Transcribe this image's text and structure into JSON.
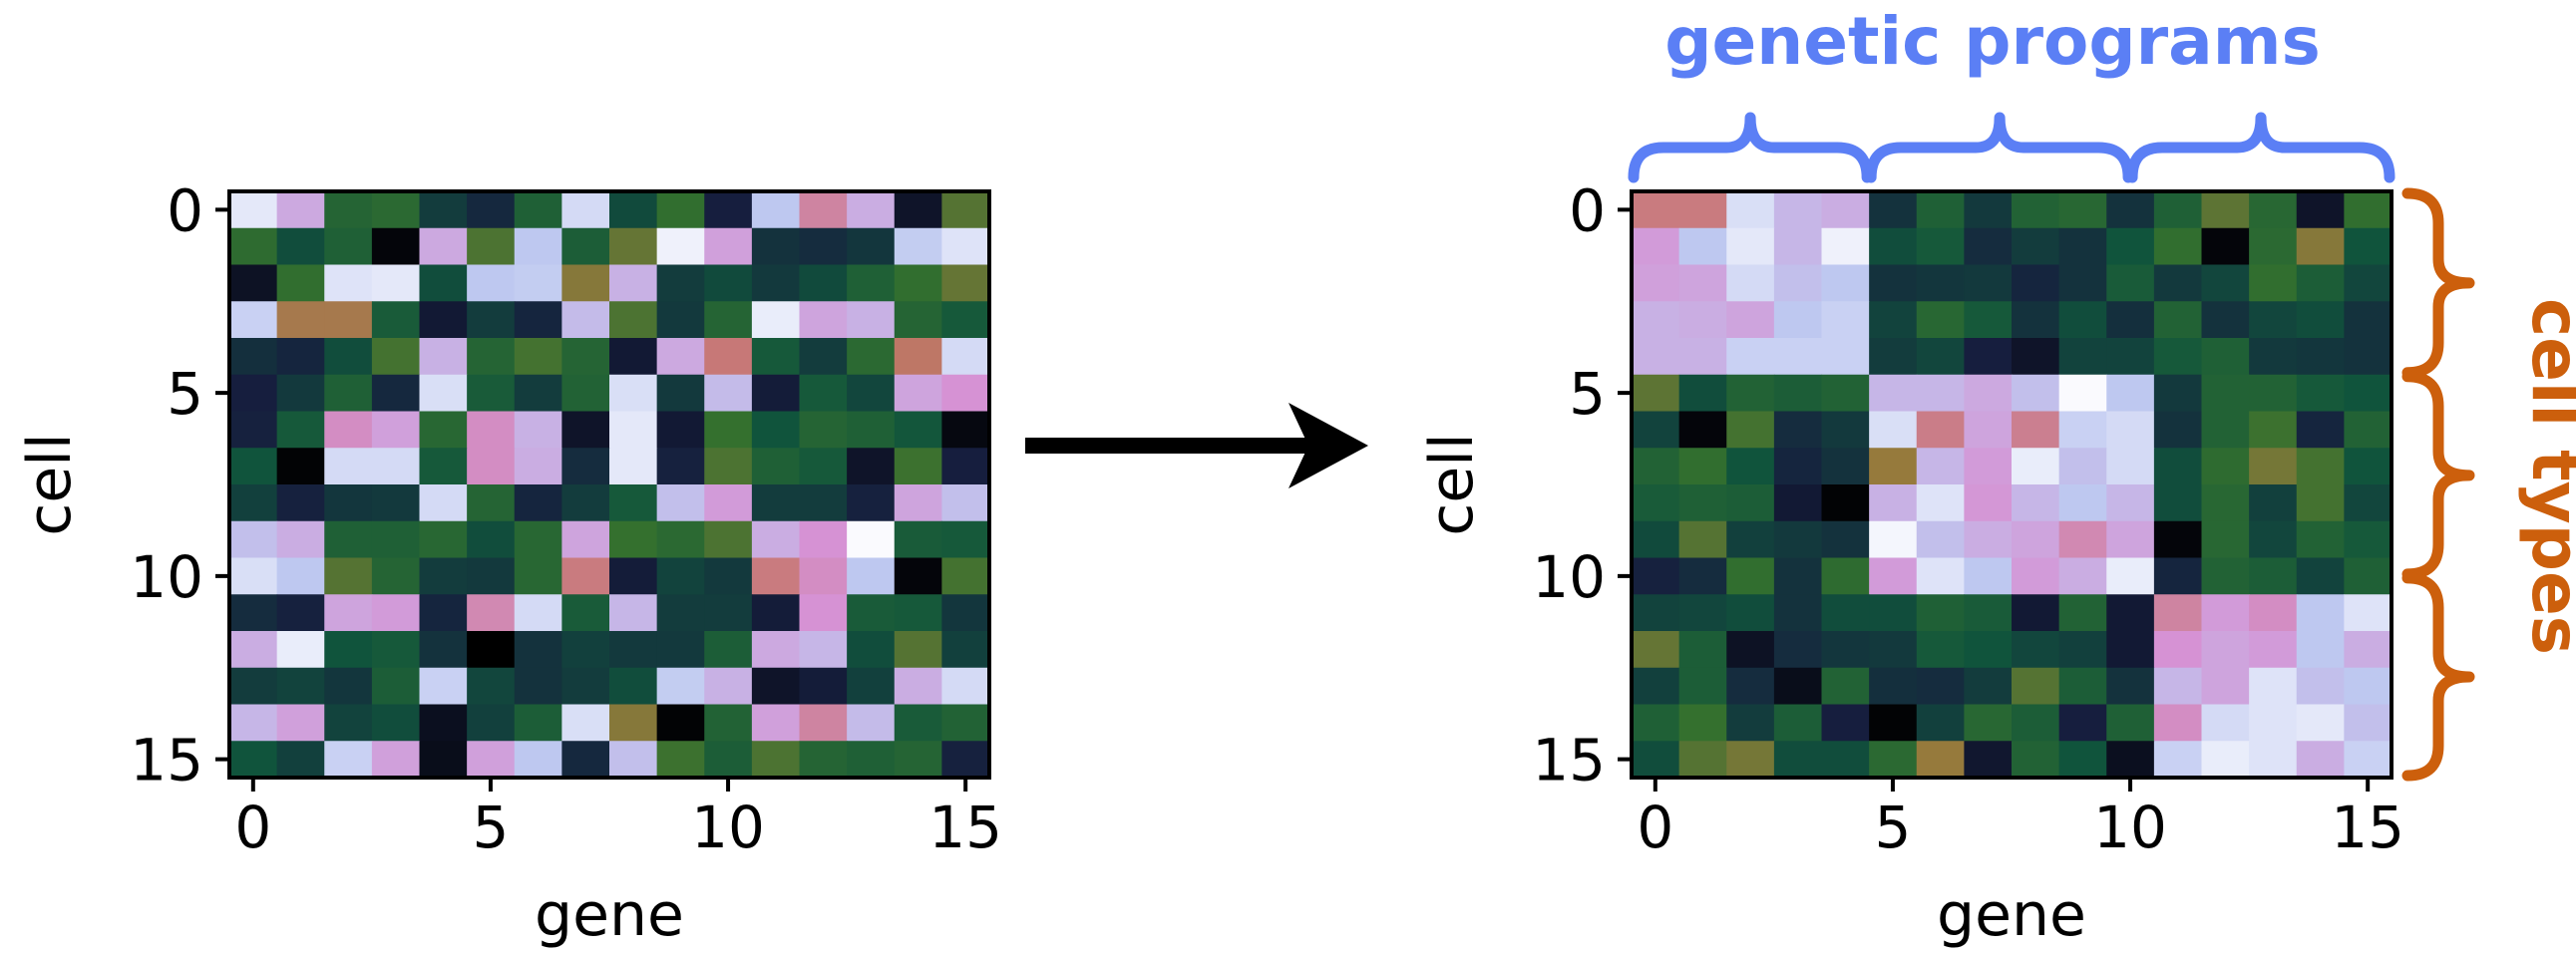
{
  "colors": {
    "genetic_programs": "#5b7ff5",
    "cell_types": "#cc5f0c",
    "arrow": "#000000"
  },
  "annotations": {
    "top_label": "genetic programs",
    "side_label": "cell types"
  },
  "chart_data": [
    {
      "type": "heatmap",
      "xlabel": "gene",
      "ylabel": "cell",
      "xlim": [
        -0.5,
        15.5
      ],
      "ylim": [
        15.5,
        -0.5
      ],
      "xticks": [
        0,
        5,
        10,
        15
      ],
      "yticks": [
        0,
        5,
        10,
        15
      ],
      "xtick_labels": [
        "0",
        "5",
        "10",
        "15"
      ],
      "ytick_labels": [
        "0",
        "5",
        "10",
        "15"
      ],
      "colormap": "cubehelix-like",
      "values": [
        [
          0.95,
          0.81,
          0.35,
          0.37,
          0.21,
          0.15,
          0.33,
          0.92,
          0.25,
          0.39,
          0.12,
          0.88,
          0.7,
          0.82,
          0.08,
          0.44
        ],
        [
          0.38,
          0.26,
          0.33,
          0.02,
          0.81,
          0.43,
          0.88,
          0.32,
          0.46,
          0.97,
          0.79,
          0.18,
          0.16,
          0.19,
          0.89,
          0.94
        ],
        [
          0.07,
          0.39,
          0.94,
          0.95,
          0.26,
          0.88,
          0.89,
          0.5,
          0.83,
          0.21,
          0.25,
          0.2,
          0.25,
          0.33,
          0.39,
          0.46
        ],
        [
          0.9,
          0.56,
          0.56,
          0.31,
          0.1,
          0.21,
          0.14,
          0.85,
          0.43,
          0.2,
          0.35,
          0.96,
          0.8,
          0.83,
          0.35,
          0.3
        ],
        [
          0.17,
          0.14,
          0.26,
          0.42,
          0.83,
          0.35,
          0.42,
          0.35,
          0.1,
          0.81,
          0.65,
          0.3,
          0.21,
          0.37,
          0.62,
          0.92
        ],
        [
          0.12,
          0.2,
          0.33,
          0.15,
          0.93,
          0.31,
          0.21,
          0.34,
          0.93,
          0.2,
          0.85,
          0.11,
          0.3,
          0.24,
          0.8,
          0.76
        ],
        [
          0.13,
          0.3,
          0.74,
          0.79,
          0.36,
          0.74,
          0.83,
          0.08,
          0.95,
          0.1,
          0.4,
          0.28,
          0.35,
          0.33,
          0.29,
          0.03
        ],
        [
          0.28,
          0.01,
          0.92,
          0.92,
          0.3,
          0.74,
          0.82,
          0.16,
          0.95,
          0.13,
          0.43,
          0.33,
          0.3,
          0.08,
          0.41,
          0.12
        ],
        [
          0.22,
          0.13,
          0.19,
          0.2,
          0.92,
          0.35,
          0.14,
          0.21,
          0.3,
          0.86,
          0.78,
          0.21,
          0.21,
          0.13,
          0.8,
          0.86
        ],
        [
          0.86,
          0.82,
          0.33,
          0.33,
          0.36,
          0.26,
          0.36,
          0.8,
          0.4,
          0.37,
          0.43,
          0.82,
          0.76,
          0.99,
          0.31,
          0.3
        ],
        [
          0.93,
          0.88,
          0.44,
          0.35,
          0.21,
          0.2,
          0.36,
          0.66,
          0.11,
          0.23,
          0.2,
          0.66,
          0.74,
          0.88,
          0.02,
          0.42
        ],
        [
          0.16,
          0.13,
          0.8,
          0.78,
          0.14,
          0.72,
          0.92,
          0.31,
          0.84,
          0.21,
          0.21,
          0.11,
          0.76,
          0.31,
          0.3,
          0.19
        ],
        [
          0.82,
          0.96,
          0.28,
          0.3,
          0.18,
          0.0,
          0.18,
          0.22,
          0.2,
          0.2,
          0.32,
          0.81,
          0.84,
          0.26,
          0.44,
          0.22
        ],
        [
          0.21,
          0.23,
          0.19,
          0.32,
          0.9,
          0.24,
          0.18,
          0.21,
          0.26,
          0.89,
          0.83,
          0.08,
          0.11,
          0.22,
          0.82,
          0.92
        ],
        [
          0.84,
          0.79,
          0.23,
          0.26,
          0.06,
          0.22,
          0.32,
          0.93,
          0.5,
          0.01,
          0.34,
          0.79,
          0.7,
          0.85,
          0.31,
          0.34
        ],
        [
          0.28,
          0.22,
          0.9,
          0.79,
          0.05,
          0.79,
          0.88,
          0.15,
          0.86,
          0.41,
          0.32,
          0.43,
          0.35,
          0.33,
          0.35,
          0.13
        ]
      ]
    },
    {
      "type": "heatmap",
      "xlabel": "gene",
      "ylabel": "cell",
      "xlim": [
        -0.5,
        15.5
      ],
      "ylim": [
        15.5,
        -0.5
      ],
      "xticks": [
        0,
        5,
        10,
        15
      ],
      "yticks": [
        0,
        5,
        10,
        15
      ],
      "xtick_labels": [
        "0",
        "5",
        "10",
        "15"
      ],
      "ytick_labels": [
        "0",
        "5",
        "10",
        "15"
      ],
      "colormap": "cubehelix-like",
      "values": [
        [
          0.66,
          0.66,
          0.93,
          0.84,
          0.82,
          0.18,
          0.33,
          0.2,
          0.34,
          0.36,
          0.18,
          0.33,
          0.45,
          0.36,
          0.08,
          0.39
        ],
        [
          0.78,
          0.88,
          0.95,
          0.84,
          0.97,
          0.26,
          0.3,
          0.16,
          0.21,
          0.18,
          0.28,
          0.39,
          0.02,
          0.37,
          0.5,
          0.28
        ],
        [
          0.79,
          0.8,
          0.92,
          0.86,
          0.88,
          0.18,
          0.19,
          0.2,
          0.14,
          0.18,
          0.31,
          0.2,
          0.24,
          0.39,
          0.32,
          0.24
        ],
        [
          0.83,
          0.82,
          0.8,
          0.88,
          0.9,
          0.23,
          0.36,
          0.3,
          0.18,
          0.26,
          0.17,
          0.34,
          0.18,
          0.24,
          0.26,
          0.18
        ],
        [
          0.83,
          0.83,
          0.9,
          0.9,
          0.9,
          0.21,
          0.24,
          0.12,
          0.08,
          0.23,
          0.23,
          0.3,
          0.33,
          0.2,
          0.19,
          0.18
        ],
        [
          0.45,
          0.26,
          0.34,
          0.32,
          0.34,
          0.84,
          0.84,
          0.81,
          0.86,
          0.99,
          0.88,
          0.2,
          0.34,
          0.34,
          0.3,
          0.28
        ],
        [
          0.23,
          0.02,
          0.42,
          0.16,
          0.2,
          0.93,
          0.67,
          0.8,
          0.68,
          0.9,
          0.92,
          0.18,
          0.34,
          0.41,
          0.14,
          0.34
        ],
        [
          0.34,
          0.39,
          0.28,
          0.14,
          0.18,
          0.52,
          0.84,
          0.78,
          0.96,
          0.86,
          0.92,
          0.26,
          0.38,
          0.48,
          0.42,
          0.28
        ],
        [
          0.31,
          0.33,
          0.32,
          0.1,
          0.01,
          0.83,
          0.94,
          0.77,
          0.84,
          0.88,
          0.84,
          0.26,
          0.36,
          0.22,
          0.42,
          0.24
        ],
        [
          0.25,
          0.44,
          0.22,
          0.2,
          0.18,
          0.98,
          0.86,
          0.82,
          0.8,
          0.72,
          0.8,
          0.02,
          0.36,
          0.24,
          0.34,
          0.3
        ],
        [
          0.13,
          0.16,
          0.39,
          0.18,
          0.38,
          0.78,
          0.94,
          0.88,
          0.78,
          0.82,
          0.96,
          0.14,
          0.34,
          0.32,
          0.23,
          0.33
        ],
        [
          0.23,
          0.24,
          0.26,
          0.18,
          0.26,
          0.26,
          0.33,
          0.31,
          0.1,
          0.34,
          0.1,
          0.7,
          0.78,
          0.74,
          0.88,
          0.94
        ],
        [
          0.46,
          0.32,
          0.07,
          0.16,
          0.19,
          0.2,
          0.3,
          0.28,
          0.24,
          0.22,
          0.1,
          0.76,
          0.8,
          0.78,
          0.88,
          0.82
        ],
        [
          0.22,
          0.32,
          0.16,
          0.05,
          0.34,
          0.17,
          0.16,
          0.21,
          0.44,
          0.32,
          0.18,
          0.84,
          0.8,
          0.94,
          0.86,
          0.88
        ],
        [
          0.33,
          0.4,
          0.21,
          0.32,
          0.12,
          0.01,
          0.22,
          0.36,
          0.32,
          0.12,
          0.33,
          0.74,
          0.92,
          0.94,
          0.95,
          0.86
        ],
        [
          0.26,
          0.44,
          0.48,
          0.26,
          0.26,
          0.37,
          0.52,
          0.09,
          0.34,
          0.28,
          0.06,
          0.9,
          0.96,
          0.94,
          0.82,
          0.9
        ]
      ]
    }
  ]
}
